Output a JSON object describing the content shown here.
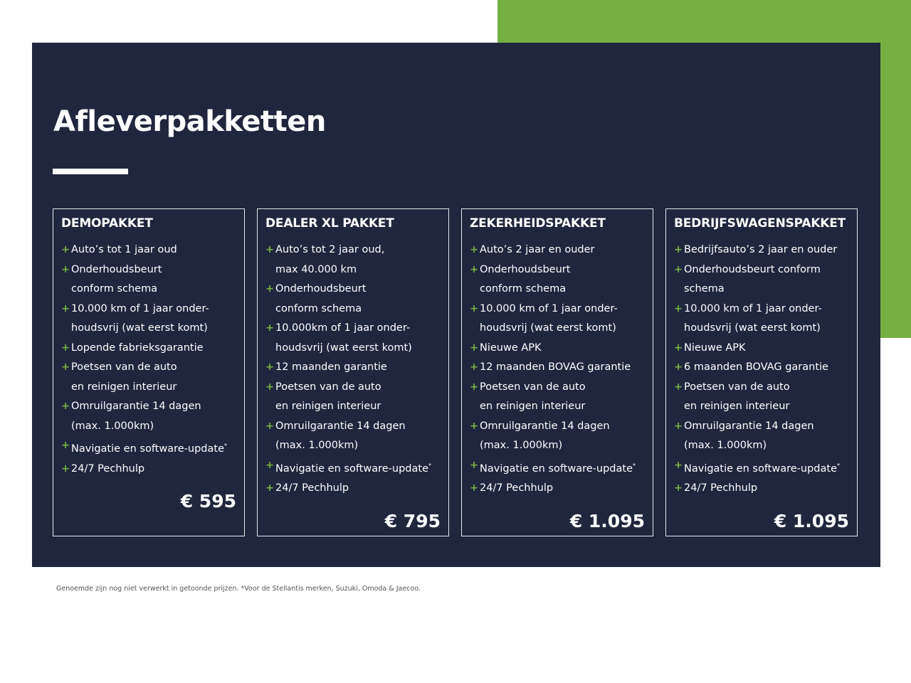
{
  "title": "Afleverpakketten",
  "colors": {
    "accent": "#76b043",
    "panel": "#20263d"
  },
  "packages": [
    {
      "name": "DEMOPAKKET",
      "price": "€ 595",
      "items": [
        {
          "lines": [
            "Auto’s tot 1 jaar oud"
          ]
        },
        {
          "lines": [
            "Onderhoudsbeurt",
            "conform schema"
          ]
        },
        {
          "lines": [
            "10.000 km of 1 jaar onder-",
            "houdsvrij (wat eerst komt)"
          ]
        },
        {
          "lines": [
            "Lopende fabrieksgarantie"
          ]
        },
        {
          "lines": [
            "Poetsen van de auto",
            "en reinigen interieur"
          ]
        },
        {
          "lines": [
            "Omruilgarantie 14 dagen",
            "(max. 1.000km)"
          ]
        },
        {
          "lines": [
            "Navigatie en software-update"
          ],
          "sup": "*"
        },
        {
          "lines": [
            "24/7 Pechhulp"
          ]
        }
      ]
    },
    {
      "name": "DEALER XL PAKKET",
      "price": "€ 795",
      "items": [
        {
          "lines": [
            "Auto’s tot 2 jaar oud,",
            "max 40.000 km"
          ]
        },
        {
          "lines": [
            "Onderhoudsbeurt",
            "conform schema"
          ]
        },
        {
          "lines": [
            "10.000km of 1 jaar onder-",
            "houdsvrij (wat eerst komt)"
          ]
        },
        {
          "lines": [
            "12 maanden garantie"
          ]
        },
        {
          "lines": [
            "Poetsen van de auto",
            "en reinigen interieur"
          ]
        },
        {
          "lines": [
            "Omruilgarantie 14 dagen",
            "(max. 1.000km)"
          ]
        },
        {
          "lines": [
            "Navigatie en software-update"
          ],
          "sup": "*"
        },
        {
          "lines": [
            "24/7 Pechhulp"
          ]
        }
      ]
    },
    {
      "name": "ZEKERHEIDSPAKKET",
      "price": "€ 1.095",
      "items": [
        {
          "lines": [
            "Auto’s 2 jaar en ouder"
          ]
        },
        {
          "lines": [
            "Onderhoudsbeurt",
            "conform schema"
          ]
        },
        {
          "lines": [
            "10.000 km of 1 jaar onder-",
            "houdsvrij (wat eerst komt)"
          ]
        },
        {
          "lines": [
            "Nieuwe APK"
          ]
        },
        {
          "lines": [
            "12 maanden BOVAG garantie"
          ]
        },
        {
          "lines": [
            "Poetsen van de auto",
            "en reinigen interieur"
          ]
        },
        {
          "lines": [
            "Omruilgarantie 14 dagen",
            "(max. 1.000km)"
          ]
        },
        {
          "lines": [
            "Navigatie en software-update"
          ],
          "sup": "*"
        },
        {
          "lines": [
            "24/7 Pechhulp"
          ]
        }
      ]
    },
    {
      "name": "BEDRIJFSWAGENSPAKKET",
      "price": "€ 1.095",
      "items": [
        {
          "lines": [
            "Bedrijfsauto’s 2 jaar en ouder"
          ]
        },
        {
          "lines": [
            "Onderhoudsbeurt conform",
            "schema"
          ]
        },
        {
          "lines": [
            "10.000 km of 1 jaar onder-",
            "houdsvrij (wat eerst komt)"
          ]
        },
        {
          "lines": [
            "Nieuwe APK"
          ]
        },
        {
          "lines": [
            "6 maanden BOVAG garantie"
          ]
        },
        {
          "lines": [
            "Poetsen van de auto",
            "en reinigen interieur"
          ]
        },
        {
          "lines": [
            "Omruilgarantie 14 dagen",
            "(max. 1.000km)"
          ]
        },
        {
          "lines": [
            "Navigatie en software-update"
          ],
          "sup": "*"
        },
        {
          "lines": [
            "24/7 Pechhulp"
          ]
        }
      ]
    }
  ],
  "plus_symbol": "+",
  "footnote": "Genoemde zijn nog niet verwerkt in getoonde prijzen. *Voor de Stellantis merken, Suzuki, Omoda & Jaecoo."
}
